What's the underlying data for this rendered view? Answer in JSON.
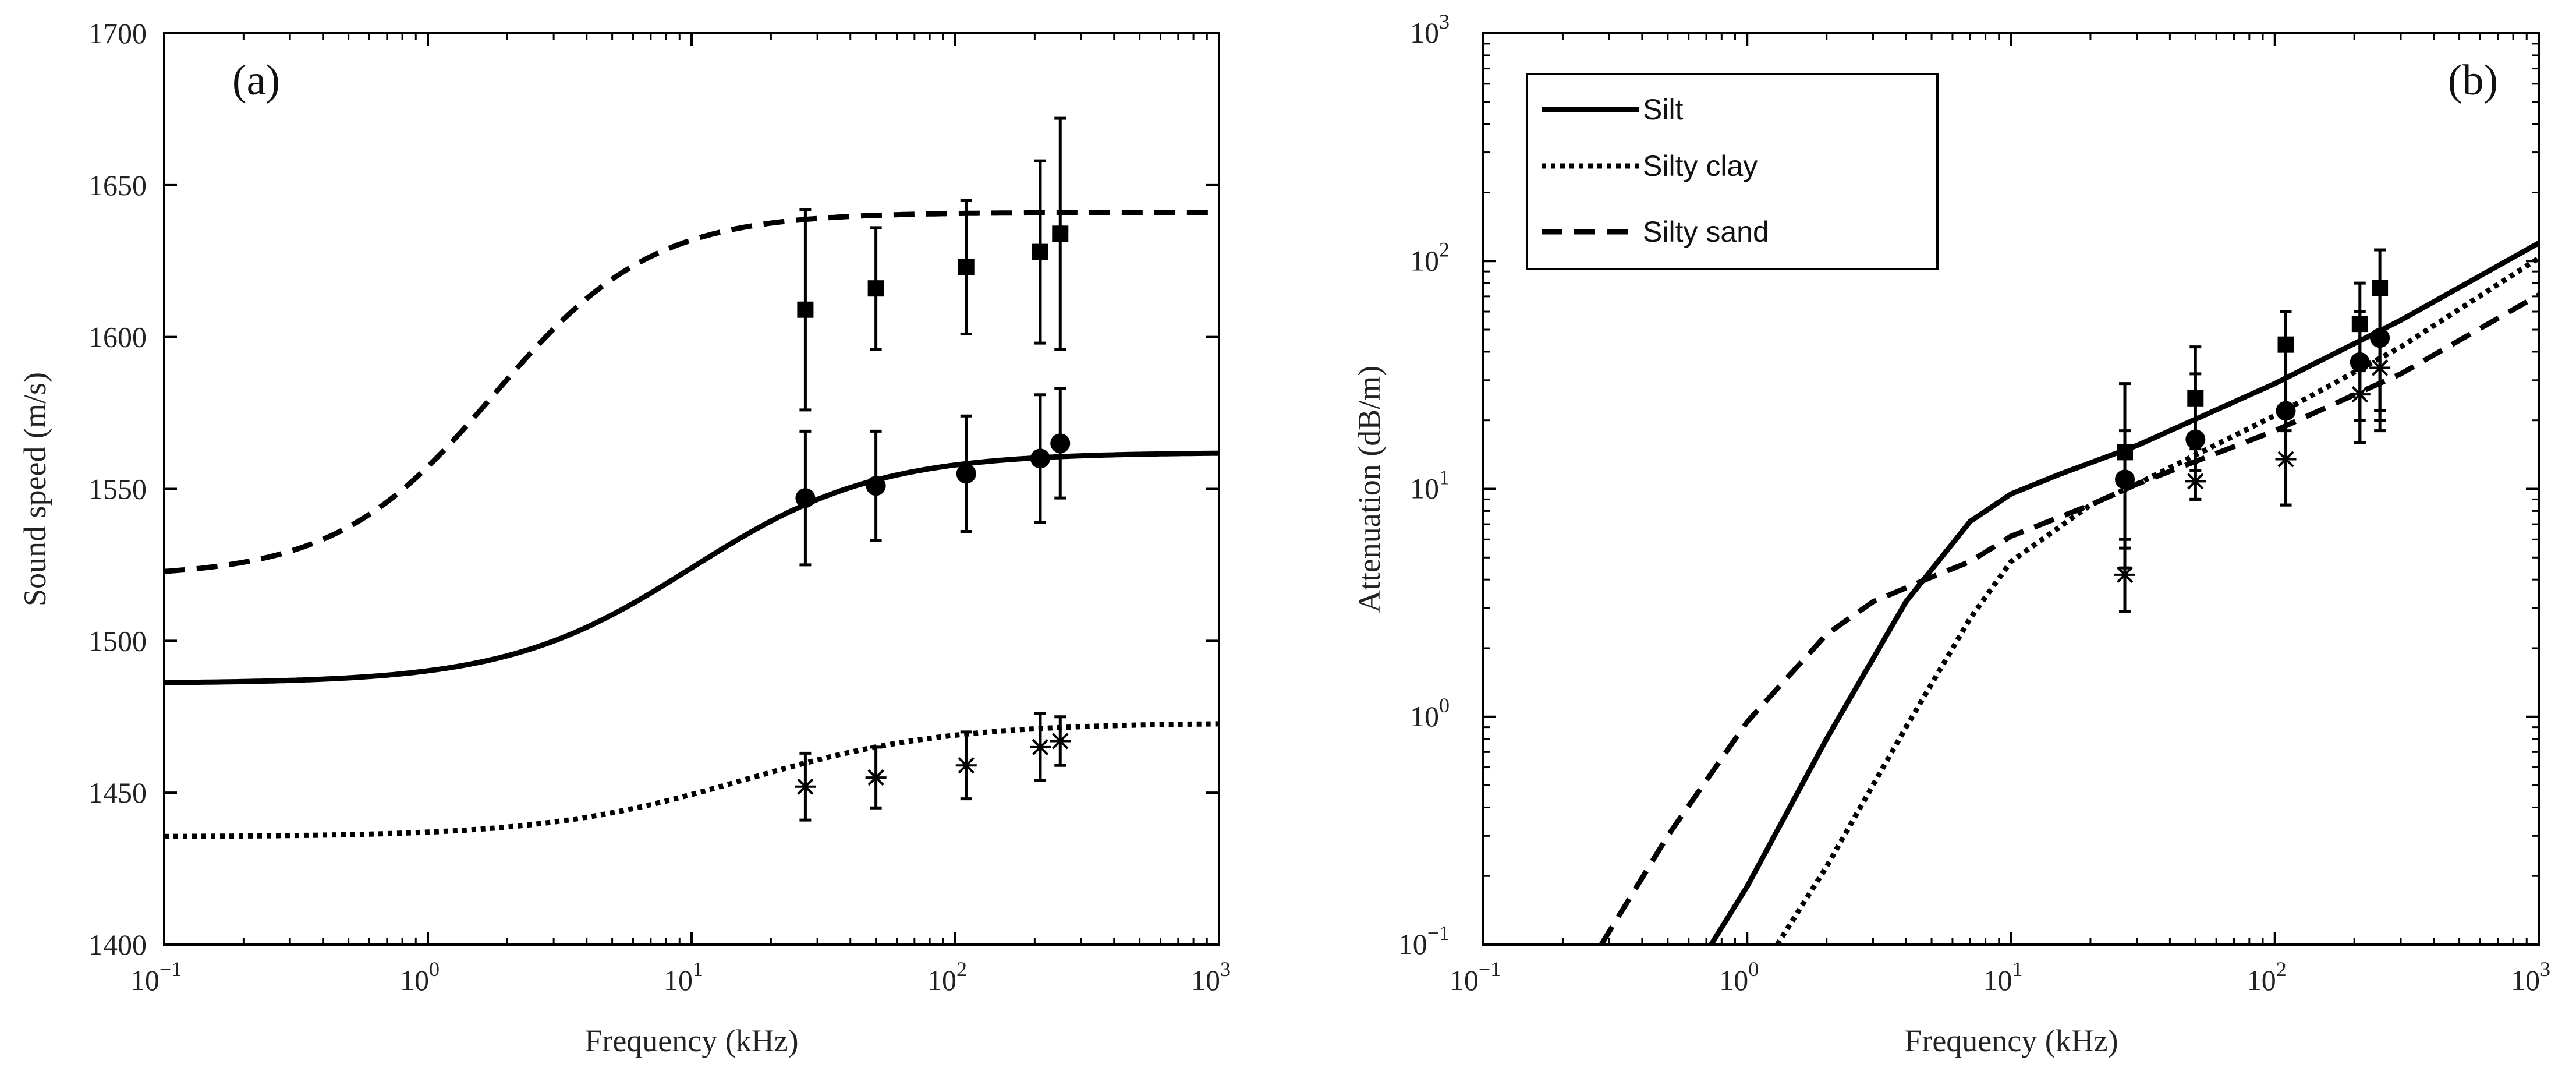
{
  "chart_data": [
    {
      "type": "line",
      "panel_label": "(a)",
      "title": "",
      "xlabel": "Frequency (kHz)",
      "ylabel": "Sound speed (m/s)",
      "xscale": "log",
      "xlim": [
        0.1,
        1000
      ],
      "ylim": [
        1400,
        1700
      ],
      "grid": false,
      "xticks": [
        {
          "base": "10",
          "exp": "−1"
        },
        {
          "base": "10",
          "exp": "0"
        },
        {
          "base": "10",
          "exp": "1"
        },
        {
          "base": "10",
          "exp": "2"
        },
        {
          "base": "10",
          "exp": "3"
        }
      ],
      "yticks": [
        "1400",
        "1450",
        "1500",
        "1550",
        "1600",
        "1650",
        "1700"
      ],
      "curves": [
        {
          "name": "Silt",
          "style": "solid",
          "low": 1486,
          "high": 1562,
          "center_log": 1.0,
          "width": 0.35
        },
        {
          "name": "Silty clay",
          "style": "dotted",
          "low": 1435.5,
          "high": 1473,
          "center_log": 1.2,
          "width": 0.38
        },
        {
          "name": "Silty sand",
          "style": "dashed",
          "low": 1521,
          "high": 1641,
          "center_log": 0.25,
          "width": 0.3
        }
      ],
      "measurements": [
        {
          "name": "Silty sand",
          "marker": "square",
          "points": [
            {
              "f": 27,
              "y": 1609,
              "err": 33
            },
            {
              "f": 50,
              "y": 1616,
              "err": 20
            },
            {
              "f": 110,
              "y": 1623,
              "err": 22
            },
            {
              "f": 210,
              "y": 1628,
              "err": 30
            },
            {
              "f": 250,
              "y": 1634,
              "err": 38
            }
          ]
        },
        {
          "name": "Silt",
          "marker": "circle",
          "points": [
            {
              "f": 27,
              "y": 1547,
              "err": 22
            },
            {
              "f": 50,
              "y": 1551,
              "err": 18
            },
            {
              "f": 110,
              "y": 1555,
              "err": 19
            },
            {
              "f": 210,
              "y": 1560,
              "err": 21
            },
            {
              "f": 250,
              "y": 1565,
              "err": 18
            }
          ]
        },
        {
          "name": "Silty clay",
          "marker": "asterisk",
          "points": [
            {
              "f": 27,
              "y": 1452,
              "err": 11
            },
            {
              "f": 50,
              "y": 1455,
              "err": 10
            },
            {
              "f": 110,
              "y": 1459,
              "err": 11
            },
            {
              "f": 210,
              "y": 1465,
              "err": 11
            },
            {
              "f": 250,
              "y": 1467,
              "err": 8
            }
          ]
        }
      ]
    },
    {
      "type": "line",
      "panel_label": "(b)",
      "title": "",
      "xlabel": "Frequency (kHz)",
      "ylabel": "Attenuation (dB/m)",
      "xscale": "log",
      "yscale": "log",
      "xlim": [
        0.1,
        1000
      ],
      "ylim": [
        0.1,
        1000
      ],
      "grid": false,
      "xticks": [
        {
          "base": "10",
          "exp": "−1"
        },
        {
          "base": "10",
          "exp": "0"
        },
        {
          "base": "10",
          "exp": "1"
        },
        {
          "base": "10",
          "exp": "2"
        },
        {
          "base": "10",
          "exp": "3"
        }
      ],
      "yticks": [
        {
          "base": "10",
          "exp": "−1"
        },
        {
          "base": "10",
          "exp": "0"
        },
        {
          "base": "10",
          "exp": "1"
        },
        {
          "base": "10",
          "exp": "2"
        },
        {
          "base": "10",
          "exp": "3"
        }
      ],
      "legend": {
        "position": "top-left",
        "entries": [
          {
            "label": "Silt",
            "style": "solid"
          },
          {
            "label": "Silty clay",
            "style": "dotted"
          },
          {
            "label": "Silty sand",
            "style": "dashed"
          }
        ]
      },
      "curves": [
        {
          "name": "Silt",
          "style": "solid",
          "x": [
            0.73,
            1,
            2,
            4,
            7,
            10,
            15,
            30,
            100,
            300,
            1000
          ],
          "y": [
            0.1,
            0.18,
            0.8,
            3.2,
            7.2,
            9.5,
            11.5,
            15.5,
            29,
            55,
            120
          ]
        },
        {
          "name": "Silty clay",
          "style": "dotted",
          "x": [
            1.3,
            2,
            4,
            7,
            10,
            20,
            30,
            100,
            300,
            1000
          ],
          "y": [
            0.1,
            0.22,
            0.9,
            2.7,
            4.8,
            8.5,
            10.5,
            21,
            42,
            103
          ]
        },
        {
          "name": "Silty sand",
          "style": "dashed",
          "x": [
            0.28,
            0.5,
            1,
            2,
            3,
            5,
            7,
            10,
            20,
            30,
            100,
            300,
            1000
          ],
          "y": [
            0.1,
            0.3,
            0.95,
            2.3,
            3.2,
            4.1,
            4.8,
            6.2,
            8.5,
            10.5,
            18,
            32,
            71
          ]
        }
      ],
      "measurements": [
        {
          "name": "Silty sand",
          "marker": "square",
          "points": [
            {
              "f": 27,
              "y": 14.5,
              "lo": 5.5,
              "hi": 29
            },
            {
              "f": 50,
              "y": 25,
              "lo": 12,
              "hi": 42
            },
            {
              "f": 110,
              "y": 43,
              "lo": 22,
              "hi": 60
            },
            {
              "f": 210,
              "y": 53,
              "lo": 20,
              "hi": 80
            },
            {
              "f": 250,
              "y": 76,
              "lo": 22,
              "hi": 112
            }
          ]
        },
        {
          "name": "Silt",
          "marker": "circle",
          "points": [
            {
              "f": 27,
              "y": 11,
              "lo": 4.5,
              "hi": 18
            },
            {
              "f": 50,
              "y": 16.5,
              "lo": 9,
              "hi": 32
            },
            {
              "f": 110,
              "y": 22,
              "lo": 8.5,
              "hi": 42
            },
            {
              "f": 210,
              "y": 36,
              "lo": 16,
              "hi": 60
            },
            {
              "f": 250,
              "y": 46,
              "lo": 18,
              "hi": 80
            }
          ]
        },
        {
          "name": "Silty clay",
          "marker": "asterisk",
          "points": [
            {
              "f": 27,
              "y": 4.2,
              "lo": 2.9,
              "hi": 6
            },
            {
              "f": 50,
              "y": 10.8,
              "lo": 9,
              "hi": 15
            },
            {
              "f": 110,
              "y": 13.5,
              "lo": 8.5,
              "hi": 18
            },
            {
              "f": 210,
              "y": 26,
              "lo": 16,
              "hi": 33
            },
            {
              "f": 250,
              "y": 34,
              "lo": 20,
              "hi": 45
            }
          ]
        }
      ]
    }
  ]
}
